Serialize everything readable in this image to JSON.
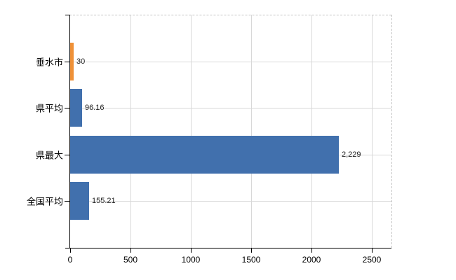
{
  "chart_data": {
    "type": "bar",
    "orientation": "horizontal",
    "title": "",
    "xlabel": "",
    "ylabel": "",
    "categories": [
      "垂水市",
      "県平均",
      "県最大",
      "全国平均"
    ],
    "values": [
      30,
      96.16,
      2229,
      155.21
    ],
    "value_labels": [
      "30",
      "96.16",
      "2,229",
      "155.21"
    ],
    "series_colors": [
      "#ef9138",
      "#4170ad",
      "#4170ad",
      "#4170ad"
    ],
    "x_ticks": [
      0,
      500,
      1000,
      1500,
      2000,
      2500
    ],
    "x_tick_labels": [
      "0",
      "500",
      "1000",
      "1500",
      "2000",
      "2500"
    ],
    "xlim": [
      0,
      2665
    ],
    "grid": true,
    "legend": false
  },
  "colors": {
    "bar_blue": "#4170ad",
    "bar_orange": "#ef9138",
    "gridline": "#d8d8d8",
    "dashed_border": "#c4c4c4",
    "axis": "#000000",
    "category_text": "#000000",
    "value_text": "#222222",
    "background": "#ffffff"
  }
}
